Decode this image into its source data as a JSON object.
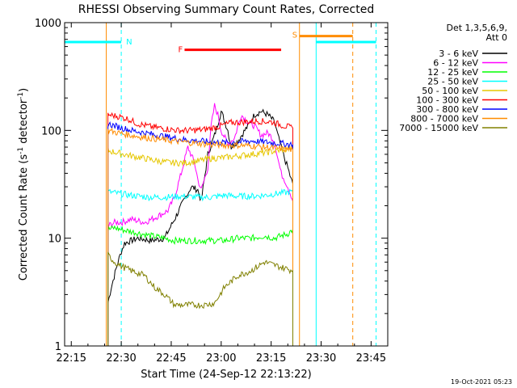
{
  "chart_data": {
    "type": "line",
    "title": "RHESSI Observing Summary Count Rates, Corrected",
    "xlabel": "Start Time (24-Sep-12 22:13:22)",
    "ylabel_main": "Corrected Count Rate (s",
    "ylabel_sup1": "-1",
    "ylabel_mid": " detector",
    "ylabel_sup2": "-1",
    "ylabel_end": ")",
    "y_scale": "log",
    "ylim": [
      1,
      1000
    ],
    "xlim_minutes_after_2213": [
      0,
      97
    ],
    "x_tick_labels": [
      {
        "t": 2,
        "label": "22:15"
      },
      {
        "t": 17,
        "label": "22:30"
      },
      {
        "t": 32,
        "label": "22:45"
      },
      {
        "t": 47,
        "label": "23:00"
      },
      {
        "t": 62,
        "label": "23:15"
      },
      {
        "t": 77,
        "label": "23:30"
      },
      {
        "t": 92,
        "label": "23:45"
      }
    ],
    "y_tick_labels": [
      {
        "v": 1,
        "label": "1"
      },
      {
        "v": 10,
        "label": "10"
      },
      {
        "v": 100,
        "label": "100"
      },
      {
        "v": 1000,
        "label": "1000"
      }
    ],
    "legend_header": [
      "Det 1,3,5,6,9,",
      "Att 0"
    ],
    "legend_position": "right",
    "footer_date": "19-Oct-2021 05:23",
    "series": [
      {
        "name": "3 - 6 keV",
        "color": "#000000",
        "x": [
          13,
          14,
          16,
          17,
          18,
          22,
          26,
          30,
          33,
          35,
          38,
          40,
          41,
          43,
          45,
          47,
          49,
          50,
          52,
          55,
          57,
          59,
          61,
          63,
          64,
          65,
          66,
          67,
          68,
          68.5
        ],
        "y": [
          2.5,
          3.5,
          6,
          7.5,
          9,
          10,
          9.5,
          10,
          15,
          20,
          30,
          28,
          22,
          60,
          90,
          150,
          100,
          70,
          80,
          110,
          140,
          150,
          140,
          120,
          90,
          70,
          55,
          45,
          35,
          32
        ]
      },
      {
        "name": "6 - 12 keV",
        "color": "#ff00ff",
        "x": [
          13,
          15,
          17,
          20,
          24,
          28,
          31,
          33,
          35,
          37,
          39,
          40,
          41,
          43,
          44,
          45,
          46,
          47,
          49,
          51,
          53,
          55,
          57,
          59,
          61,
          63,
          64,
          65,
          66,
          67,
          68,
          68.5
        ],
        "y": [
          13,
          14,
          14,
          15,
          14,
          16,
          18,
          24,
          40,
          70,
          50,
          35,
          28,
          45,
          110,
          170,
          140,
          100,
          75,
          85,
          140,
          120,
          110,
          90,
          95,
          80,
          55,
          40,
          35,
          30,
          25,
          22
        ]
      },
      {
        "name": "12 - 25 keV",
        "color": "#00ff00",
        "x": [
          13,
          15,
          17,
          20,
          23,
          26,
          30,
          33,
          36,
          40,
          44,
          48,
          52,
          56,
          60,
          63,
          65,
          67,
          68.5
        ],
        "y": [
          12,
          12.5,
          12,
          11.5,
          11,
          10.5,
          10,
          9.5,
          9.5,
          9.5,
          9.5,
          9.5,
          10,
          10,
          10.5,
          10,
          10.5,
          11,
          12
        ]
      },
      {
        "name": "25 - 50 keV",
        "color": "#00ffff",
        "x": [
          13,
          16,
          20,
          25,
          30,
          35,
          40,
          44,
          48,
          52,
          56,
          60,
          64,
          68.5
        ],
        "y": [
          27,
          26,
          25,
          24,
          24,
          24.5,
          24,
          24,
          25,
          24.5,
          24.5,
          25,
          26,
          27
        ]
      },
      {
        "name": "50 - 100 keV",
        "color": "#e6c700",
        "x": [
          13,
          16,
          20,
          24,
          28,
          32,
          36,
          40,
          44,
          48,
          52,
          56,
          60,
          64,
          68.5
        ],
        "y": [
          65,
          62,
          58,
          55,
          52,
          50,
          50,
          52,
          55,
          56,
          58,
          60,
          62,
          65,
          68
        ]
      },
      {
        "name": "100 - 300 keV",
        "color": "#ff0000",
        "x": [
          13,
          16,
          19,
          22,
          26,
          30,
          34,
          38,
          42,
          46,
          50,
          54,
          58,
          62,
          66,
          68.5
        ],
        "y": [
          140,
          135,
          128,
          115,
          108,
          104,
          100,
          100,
          102,
          108,
          118,
          120,
          122,
          120,
          110,
          105
        ]
      },
      {
        "name": "300 - 800 keV",
        "color": "#0000ff",
        "x": [
          13,
          16,
          20,
          24,
          28,
          32,
          36,
          40,
          44,
          48,
          52,
          56,
          60,
          64,
          68.5
        ],
        "y": [
          115,
          108,
          100,
          95,
          90,
          86,
          82,
          80,
          78,
          77,
          78,
          80,
          78,
          76,
          74
        ]
      },
      {
        "name": "800 - 7000 keV",
        "color": "#ff8c00",
        "x": [
          13,
          16,
          20,
          24,
          28,
          32,
          36,
          40,
          44,
          48,
          52,
          56,
          60,
          64,
          68.5
        ],
        "y": [
          100,
          95,
          90,
          86,
          83,
          80,
          78,
          76,
          74,
          73,
          73,
          72,
          70,
          68,
          66
        ]
      },
      {
        "name": "7000 - 15000 keV",
        "color": "#808000",
        "x": [
          13,
          15,
          17,
          20,
          24,
          27,
          30,
          33,
          36,
          39,
          42,
          45,
          48,
          52,
          56,
          60,
          64,
          68.5
        ],
        "y": [
          7,
          6,
          5.5,
          5,
          4.5,
          3.5,
          3,
          2.4,
          2.4,
          2.4,
          2.4,
          2.5,
          3.5,
          4.5,
          5,
          6,
          5.5,
          5
        ]
      }
    ],
    "flags": [
      {
        "label": "N",
        "color": "#00ffff",
        "x_start": 0,
        "x_end": 17,
        "y": 660
      },
      {
        "label": "F",
        "color": "#ff0000",
        "x_start": 36,
        "x_end": 65,
        "y": 560
      },
      {
        "label": "S",
        "color": "#ff8c00",
        "x_start": 70.5,
        "x_end": 86.5,
        "y": 750
      },
      {
        "label": "",
        "color": "#00ffff",
        "x_start": 75.5,
        "x_end": 93.5,
        "y": 660
      }
    ],
    "vlines": [
      {
        "t": 0,
        "color": "#00ffff",
        "style": "solid"
      },
      {
        "t": 17,
        "color": "#00ffff",
        "style": "dashed"
      },
      {
        "t": 12.5,
        "color": "#ff8c00",
        "style": "solid"
      },
      {
        "t": 70.5,
        "color": "#ff8c00",
        "style": "solid"
      },
      {
        "t": 75.5,
        "color": "#00ffff",
        "style": "solid"
      },
      {
        "t": 86.5,
        "color": "#ff8c00",
        "style": "dashed"
      },
      {
        "t": 93.5,
        "color": "#00ffff",
        "style": "dashed"
      }
    ]
  }
}
